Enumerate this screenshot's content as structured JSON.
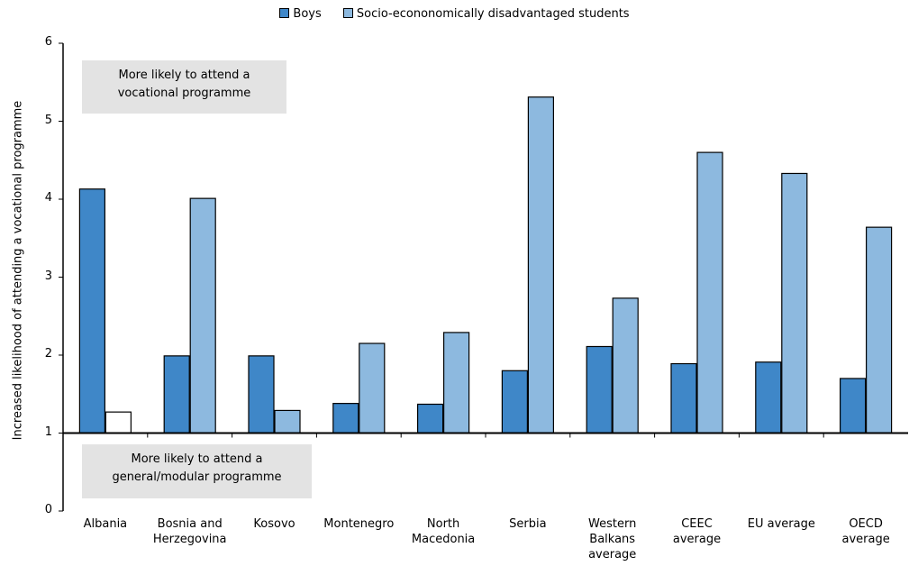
{
  "chart_data": {
    "type": "bar",
    "title": "",
    "xlabel": "",
    "ylabel": "Increased likelihood of attending a vocational programme",
    "ylim": [
      0,
      6
    ],
    "yticks": [
      0,
      1,
      2,
      3,
      4,
      5,
      6
    ],
    "baseline": 1,
    "grid": false,
    "legend_position": "top",
    "categories": [
      [
        "Albania"
      ],
      [
        "Bosnia and",
        "Herzegovina"
      ],
      [
        "Kosovo"
      ],
      [
        "Montenegro"
      ],
      [
        "North",
        "Macedonia"
      ],
      [
        "Serbia"
      ],
      [
        "Western",
        "Balkans",
        "average"
      ],
      [
        "CEEC",
        "average"
      ],
      [
        "EU average"
      ],
      [
        "OECD",
        "average"
      ]
    ],
    "series": [
      {
        "name": "Boys",
        "color": "#3f87c8",
        "values": [
          4.13,
          1.99,
          1.99,
          1.38,
          1.37,
          1.8,
          2.11,
          1.89,
          1.91,
          1.7
        ]
      },
      {
        "name": "Socio-econonomically disadvantaged students",
        "color": "#8db9df",
        "values": [
          1.27,
          4.01,
          1.29,
          2.15,
          2.29,
          5.31,
          2.73,
          4.6,
          4.33,
          3.64
        ],
        "hollow_indices": [
          0
        ]
      }
    ],
    "annotations": [
      [
        "More likely to attend a",
        "vocational programme"
      ],
      [
        "More likely to attend a",
        "general/modular programme"
      ]
    ]
  }
}
